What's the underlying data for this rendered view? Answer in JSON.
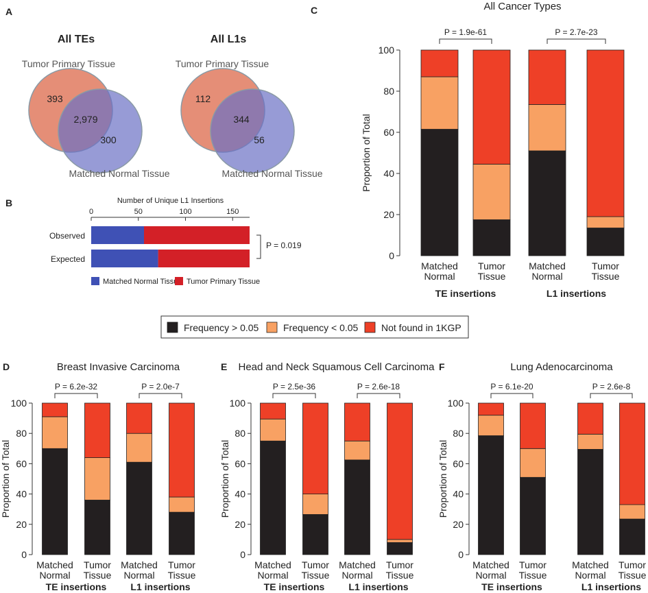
{
  "colors": {
    "black": "#231f20",
    "light_orange": "#f8a163",
    "red_orange": "#ee4027",
    "tumor_venn": "#e07a5f",
    "normal_venn": "#6b71c4",
    "blue_bar": "#3f51b5",
    "red_bar": "#d32027"
  },
  "panel_labels": {
    "a": "A",
    "b": "B",
    "c": "C",
    "d": "D",
    "e": "E",
    "f": "F"
  },
  "venn": [
    {
      "title": "All TEs",
      "top_label": "Tumor Primary Tissue",
      "bottom_label": "Matched Normal Tissue",
      "only_tumor": "393",
      "both": "2,979",
      "only_normal": "300"
    },
    {
      "title": "All L1s",
      "top_label": "Tumor Primary Tissue",
      "bottom_label": "Matched Normal Tissue",
      "only_tumor": "112",
      "both": "344",
      "only_normal": "56"
    }
  ],
  "legend": {
    "items": [
      "Frequency > 0.05",
      "Frequency < 0.05",
      "Not found in 1KGP"
    ]
  },
  "chart_data": [
    {
      "id": "B",
      "type": "bar",
      "orientation": "horizontal",
      "stacked": true,
      "title": "Number of Unique L1 Insertions",
      "categories": [
        "Observed",
        "Expected"
      ],
      "series": [
        {
          "name": "Matched Normal Tissue",
          "values": [
            56,
            71
          ]
        },
        {
          "name": "Tumor Primary Tissue",
          "values": [
            112,
            97
          ]
        }
      ],
      "xticks": [
        "0",
        "50",
        "100",
        "150"
      ],
      "xlim": [
        0,
        168
      ],
      "annotation": "P = 0.019",
      "legend": [
        "Matched Normal Tissue",
        "Tumor Primary Tissue"
      ]
    },
    {
      "id": "C",
      "type": "bar",
      "stacked": true,
      "title": "All Cancer Types",
      "ylabel": "Proportion of Total",
      "ylim": [
        0,
        100
      ],
      "yticks": [
        "0",
        "20",
        "40",
        "60",
        "80",
        "100"
      ],
      "categories": [
        "Matched Normal",
        "Tumor Tissue",
        "Matched Normal",
        "Tumor Tissue"
      ],
      "category_lines": [
        [
          "Matched",
          "Normal"
        ],
        [
          "Tumor",
          "Tissue"
        ],
        [
          "Matched",
          "Normal"
        ],
        [
          "Tumor",
          "Tissue"
        ]
      ],
      "groups": [
        "TE insertions",
        "L1 insertions"
      ],
      "p_values": [
        "P = 1.9e-61",
        "P = 2.7e-23"
      ],
      "series": [
        {
          "name": "Frequency > 0.05",
          "values": [
            61.5,
            17.5,
            51,
            13.5
          ]
        },
        {
          "name": "Frequency < 0.05",
          "values": [
            25.5,
            27,
            22.5,
            5.5
          ]
        },
        {
          "name": "Not found in 1KGP",
          "values": [
            13,
            55.5,
            26.5,
            81
          ]
        }
      ]
    },
    {
      "id": "D",
      "type": "bar",
      "stacked": true,
      "title": "Breast Invasive Carcinoma",
      "ylabel": "Proportion of Total",
      "ylim": [
        0,
        100
      ],
      "yticks": [
        "0",
        "20",
        "40",
        "60",
        "80",
        "100"
      ],
      "categories": [
        "Matched Normal",
        "Tumor Tissue",
        "Matched Normal",
        "Tumor Tissue"
      ],
      "category_lines": [
        [
          "Matched",
          "Normal"
        ],
        [
          "Tumor",
          "Tissue"
        ],
        [
          "Matched",
          "Normal"
        ],
        [
          "Tumor",
          "Tissue"
        ]
      ],
      "groups": [
        "TE insertions",
        "L1 insertions"
      ],
      "p_values": [
        "P = 6.2e-32",
        "P = 2.0e-7"
      ],
      "series": [
        {
          "name": "Frequency > 0.05",
          "values": [
            70,
            36,
            61,
            28
          ]
        },
        {
          "name": "Frequency < 0.05",
          "values": [
            21,
            28,
            19,
            10
          ]
        },
        {
          "name": "Not found in 1KGP",
          "values": [
            9,
            36,
            20,
            62
          ]
        }
      ]
    },
    {
      "id": "E",
      "type": "bar",
      "stacked": true,
      "title": "Head and Neck Squamous Cell Carcinoma",
      "ylabel": "Proportion of Total",
      "ylim": [
        0,
        100
      ],
      "yticks": [
        "0",
        "20",
        "40",
        "60",
        "80",
        "100"
      ],
      "categories": [
        "Matched Normal",
        "Tumor Tissue",
        "Matched Normal",
        "Tumor Tissue"
      ],
      "category_lines": [
        [
          "Matched",
          "Normal"
        ],
        [
          "Tumor",
          "Tissue"
        ],
        [
          "Matched",
          "Normal"
        ],
        [
          "Tumor",
          "Tissue"
        ]
      ],
      "groups": [
        "TE insertions",
        "L1 insertions"
      ],
      "p_values": [
        "P = 2.5e-36",
        "P = 2.6e-18"
      ],
      "series": [
        {
          "name": "Frequency > 0.05",
          "values": [
            75,
            26.5,
            62.5,
            8
          ]
        },
        {
          "name": "Frequency < 0.05",
          "values": [
            14.5,
            13.5,
            12.5,
            2
          ]
        },
        {
          "name": "Not found in 1KGP",
          "values": [
            10.5,
            60,
            25,
            90
          ]
        }
      ]
    },
    {
      "id": "F",
      "type": "bar",
      "stacked": true,
      "title": "Lung Adenocarcinoma",
      "ylabel": "Proportion of Total",
      "ylim": [
        0,
        100
      ],
      "yticks": [
        "0",
        "20",
        "40",
        "60",
        "80",
        "100"
      ],
      "categories": [
        "Matched Normal",
        "Tumor Tissue",
        "Matched Normal",
        "Tumor Tissue"
      ],
      "category_lines": [
        [
          "Matched",
          "Normal"
        ],
        [
          "Tumor",
          "Tissue"
        ],
        [
          "Matched",
          "Normal"
        ],
        [
          "Tumor",
          "Tissue"
        ]
      ],
      "groups": [
        "TE insertions",
        "L1 insertions"
      ],
      "p_values": [
        "P = 6.1e-20",
        "P = 2.6e-8"
      ],
      "series": [
        {
          "name": "Frequency > 0.05",
          "values": [
            78.5,
            51,
            69.5,
            23.5
          ]
        },
        {
          "name": "Frequency < 0.05",
          "values": [
            13.5,
            19,
            10,
            9.5
          ]
        },
        {
          "name": "Not found in 1KGP",
          "values": [
            8,
            30,
            20.5,
            67
          ]
        }
      ]
    }
  ]
}
